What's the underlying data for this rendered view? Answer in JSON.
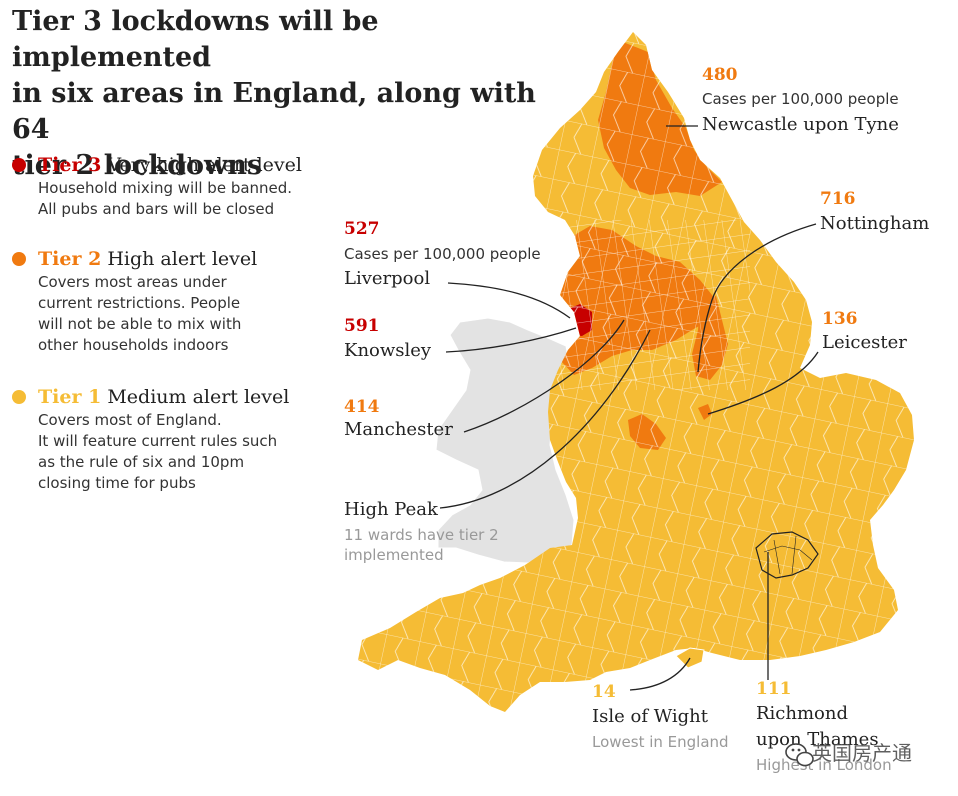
{
  "title": {
    "lines": [
      "Tier 3 lockdowns will be implemented",
      "in six areas in England, along with 64",
      "tier 2 lockdowns"
    ]
  },
  "legend": [
    {
      "tier": "Tier 3",
      "label": "Very high alert level",
      "color": "#c70000",
      "desc": [
        "Household mixing will be banned.",
        "All pubs and bars will be closed"
      ]
    },
    {
      "tier": "Tier 2",
      "label": "High alert level",
      "color": "#f07a10",
      "desc": [
        "Covers most areas under",
        "current restrictions. People",
        "will not be able to mix with",
        "other households indoors"
      ]
    },
    {
      "tier": "Tier 1",
      "label": "Medium alert level",
      "color": "#f5bc35",
      "desc": [
        "Covers most of England.",
        "It will feature current rules such",
        "as the rule of six and 10pm",
        "closing time for pubs"
      ]
    }
  ],
  "colors": {
    "tier3": "#c70000",
    "tier2": "#f07a10",
    "tier1": "#f5bc35",
    "wales": "#e3e3e3",
    "leader": "#222222",
    "border": "#ffffff"
  },
  "annotations": {
    "newcastle": {
      "value": "480",
      "sub": "Cases per 100,000 people",
      "name": "Newcastle upon Tyne"
    },
    "nottingham": {
      "value": "716",
      "name": "Nottingham"
    },
    "liverpool": {
      "value": "527",
      "sub": "Cases per 100,000 people",
      "name": "Liverpool"
    },
    "leicester": {
      "value": "136",
      "name": "Leicester"
    },
    "knowsley": {
      "value": "591",
      "name": "Knowsley"
    },
    "manchester": {
      "value": "414",
      "name": "Manchester"
    },
    "highpeak": {
      "name": "High Peak",
      "sub": [
        "11 wards have tier 2",
        "implemented"
      ]
    },
    "wight": {
      "value": "14",
      "name": "Isle of Wight",
      "sub": "Lowest in England"
    },
    "richmond": {
      "value": "111",
      "name": [
        "Richmond",
        "upon Thames"
      ],
      "sub": "Highest in London"
    }
  },
  "watermark": "英国房产通",
  "icons": {
    "watermark": "wechat-icon"
  }
}
